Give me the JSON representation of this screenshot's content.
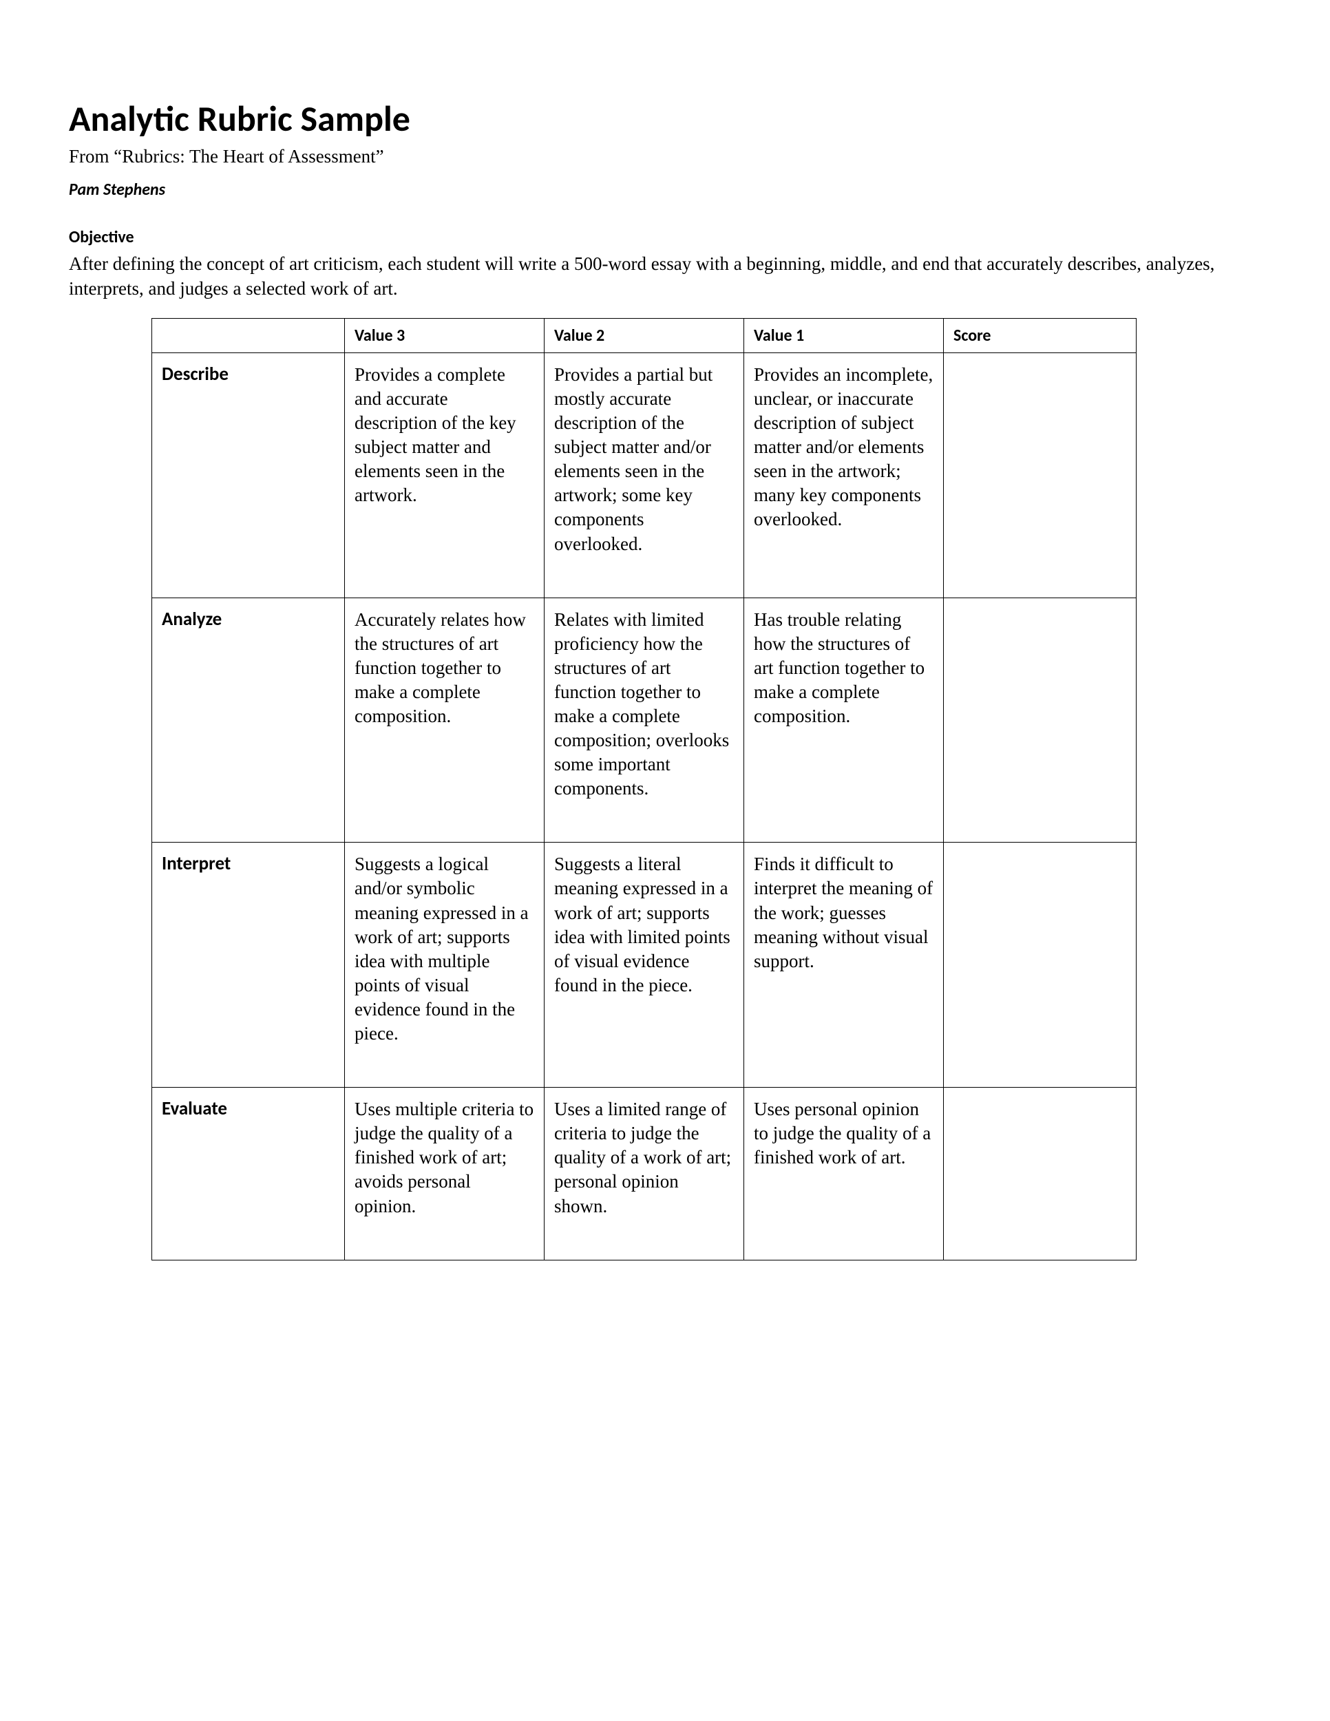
{
  "title": "Analytic Rubric Sample",
  "subtitle": "From “Rubrics: The Heart of Assessment”",
  "author": "Pam Stephens",
  "objective_heading": "Objective",
  "objective_text": "After defining the concept of art criticism, each student will write a 500-word essay with a beginning, middle, and end that accurately describes, analyzes, interprets, and judges a selected work of art.",
  "headers": {
    "col0": "",
    "col1": "Value 3",
    "col2": "Value 2",
    "col3": "Value 1",
    "col4": "Score"
  },
  "rows": [
    {
      "criterion": "Describe",
      "v3": "Provides a complete and accurate description of the key subject matter and elements seen in the artwork.",
      "v2": "Provides a partial but mostly accurate description of the subject matter and/or elements seen in the artwork; some key components overlooked.",
      "v1": "Provides an incomplete, unclear, or inaccurate description of subject matter and/or elements seen in the artwork; many key components overlooked.",
      "v1_push": "push-sm"
    },
    {
      "criterion": "Analyze",
      "v3": "Accurately relates how the structures of art function together to make a complete composition.",
      "v2": "Relates with limited proficiency how the structures of art function together to make a complete composition; overlooks some important components.",
      "v1": "Has trouble relating how the structures of art function together to make a complete composition.",
      "v2_push": "push-sm"
    },
    {
      "criterion": "Interpret",
      "v3": "Suggests a logical and/or symbolic meaning expressed in a work of art; supports idea with multiple points of visual evidence found in the piece.",
      "v2": "Suggests a literal meaning expressed in a work of art; supports idea with limited points of visual evidence found in the piece.",
      "v1": "Finds it difficult to interpret the meaning of the work; guesses meaning without visual support.",
      "v2_push": "push-sm"
    },
    {
      "criterion": "Evaluate",
      "v3": "Uses multiple criteria to judge the quality of a finished work of art; avoids personal opinion.",
      "v2": "Uses a limited range of criteria to judge the quality of a work of art; personal opinion shown.",
      "v1": "Uses personal opinion to judge the quality of a finished work of art.",
      "v3_push": "push-sm"
    }
  ]
}
